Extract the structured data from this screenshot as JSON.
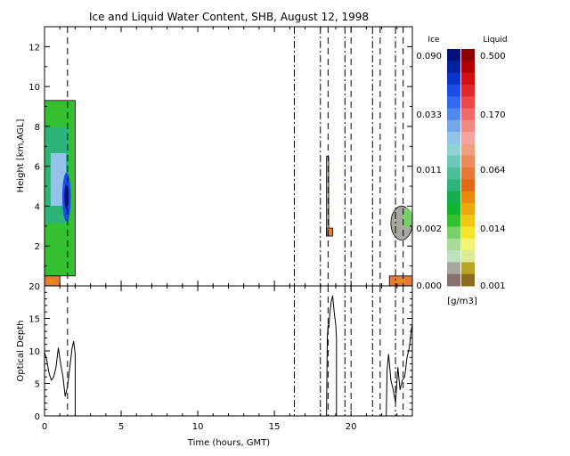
{
  "chart_data": [
    {
      "type": "heatmap",
      "panel": "upper",
      "title": "Ice and Liquid Water Content, SHB, August 12, 1998",
      "xlabel": "",
      "ylabel": "Height [km,AGL]",
      "xlim": [
        0,
        24
      ],
      "ylim": [
        0,
        13
      ],
      "xticks": [
        "0",
        "5",
        "10",
        "15",
        "20"
      ],
      "yticks": [
        "2",
        "4",
        "6",
        "8",
        "10",
        "12"
      ],
      "dashed_lines_x": [
        1.5,
        16.3,
        18.0,
        18.5,
        19.6,
        20.0,
        21.4,
        21.9,
        22.9,
        23.4
      ],
      "dash_dot_lines_x": [
        16.3,
        18.0,
        19.6,
        21.4,
        22.9
      ],
      "cloud_regions": [
        {
          "x": [
            0.0,
            2.0
          ],
          "y": [
            0.5,
            9.3
          ],
          "phase": "ice",
          "peak_ice_g_m3": 0.09
        },
        {
          "x": [
            0.0,
            1.0
          ],
          "y": [
            0.0,
            0.5
          ],
          "phase": "liquid",
          "peak_liquid_g_m3": 0.064
        },
        {
          "x": [
            18.4,
            18.8
          ],
          "y": [
            2.5,
            6.5
          ],
          "phase": "ice",
          "peak_ice_g_m3": 0.002
        },
        {
          "x": [
            18.4,
            18.8
          ],
          "y": [
            2.5,
            2.9
          ],
          "phase": "liquid",
          "peak_liquid_g_m3": 0.064
        },
        {
          "x": [
            22.6,
            24.0
          ],
          "y": [
            2.3,
            4.0
          ],
          "phase": "mixed",
          "peak_ice_g_m3": 0.002
        },
        {
          "x": [
            22.5,
            24.0
          ],
          "y": [
            0.0,
            0.5
          ],
          "phase": "liquid",
          "peak_liquid_g_m3": 0.064
        }
      ],
      "colorbar": {
        "ice_label": "Ice",
        "liquid_label": "Liquid",
        "units": "[g/m3]",
        "ice_ticks": [
          "0.090",
          "0.033",
          "0.011",
          "0.002",
          "0.000"
        ],
        "liquid_ticks": [
          "0.500",
          "0.170",
          "0.064",
          "0.014",
          "0.001"
        ],
        "ice_colors": [
          "#00127a",
          "#00229e",
          "#0a34c8",
          "#1c4ee6",
          "#3468f0",
          "#5288ec",
          "#74a6e8",
          "#94c2e8",
          "#8ed2d2",
          "#6ec8b8",
          "#4cbf98",
          "#2db47a",
          "#17ad52",
          "#10b430",
          "#34c030",
          "#78d068",
          "#a8dc98",
          "#c0e0c0",
          "#a8a8a0",
          "#887070"
        ],
        "liquid_colors": [
          "#8c0000",
          "#b00000",
          "#d01010",
          "#e02828",
          "#ec4848",
          "#f06868",
          "#f28a84",
          "#f4a4a0",
          "#f0a080",
          "#ec8a5c",
          "#e87838",
          "#e06818",
          "#e88a10",
          "#eca810",
          "#f0c814",
          "#f4e42c",
          "#f4f478",
          "#dcec98",
          "#b8a428",
          "#8c6c1c"
        ]
      }
    },
    {
      "type": "line",
      "panel": "lower",
      "xlabel": "Time (hours, GMT)",
      "ylabel": "Optical Depth",
      "xlim": [
        0,
        24
      ],
      "ylim": [
        0,
        20
      ],
      "xticks": [
        "0",
        "5",
        "10",
        "15",
        "20"
      ],
      "yticks": [
        "0",
        "5",
        "10",
        "15",
        "20"
      ],
      "series": [
        {
          "segment": 1,
          "x": [
            0.0,
            0.15,
            0.3,
            0.45,
            0.6,
            0.75,
            0.9,
            1.05,
            1.2,
            1.35,
            1.5,
            1.65,
            1.8,
            1.9,
            2.0,
            2.0
          ],
          "y": [
            9.8,
            8.5,
            6.5,
            5.5,
            6.0,
            7.5,
            10.5,
            8.0,
            6.0,
            3.0,
            4.5,
            7.5,
            10.5,
            11.5,
            9.5,
            0.0
          ]
        },
        {
          "segment": 2,
          "x": [
            18.4,
            18.45,
            18.5,
            18.55,
            18.6,
            18.7,
            18.8,
            18.9,
            19.0,
            19.05,
            19.05
          ],
          "y": [
            0.0,
            12.0,
            14.0,
            13.5,
            15.5,
            17.5,
            18.5,
            16.0,
            14.0,
            12.0,
            0.0
          ]
        },
        {
          "segment": 3,
          "x": [
            22.3,
            22.35,
            22.45,
            22.6,
            22.75,
            22.9,
            23.05,
            23.2,
            23.35,
            23.5,
            23.65,
            23.8,
            23.95,
            24.0
          ],
          "y": [
            0.0,
            7.0,
            9.5,
            5.5,
            4.0,
            2.0,
            7.5,
            4.0,
            5.5,
            6.0,
            9.0,
            10.5,
            13.5,
            14.0
          ]
        }
      ]
    }
  ]
}
